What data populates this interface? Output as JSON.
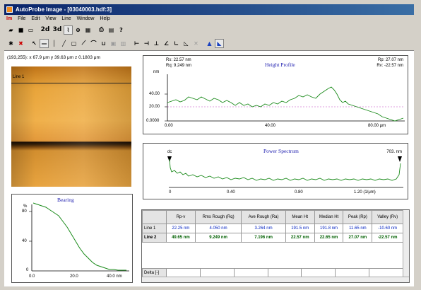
{
  "window": {
    "title": "AutoProbe Image - [03040003.hdf:3]"
  },
  "menu": {
    "logo": "Im",
    "items": [
      "File",
      "Edit",
      "View",
      "Line",
      "Window",
      "Help"
    ]
  },
  "toolbar": {
    "btn_2d": "2d",
    "btn_3d": "3d"
  },
  "status": {
    "coords": "(193,255): x 67.9 μm  y 39.63 μm  z 0.1803 μm"
  },
  "image": {
    "line_label": "Line 1"
  },
  "height_profile": {
    "title": "Height Profile",
    "stats_left_1": "Rs: 22.57 nm",
    "stats_left_2": "Rq: 9.249 nm",
    "stats_right_1": "Rp: 27.07 nm",
    "stats_right_2": "Rv: -22.57 nm",
    "y_unit": "nm",
    "y_ticks": [
      "40.00",
      "20.00",
      "0.0000"
    ],
    "x_ticks": [
      "0.00",
      "40.00",
      "80.00 μm"
    ]
  },
  "power_spectrum": {
    "title": "Power Spectrum",
    "left_label": "dc",
    "right_label": "703. nm",
    "x_ticks": [
      "0",
      "0.40",
      "0.80",
      "1.20 (1/μm)"
    ]
  },
  "bearing": {
    "title": "Bearing",
    "y_unit": "%",
    "y_ticks": [
      "80",
      "40",
      "0"
    ],
    "x_ticks": [
      "0.0",
      "20.0",
      "40.0 nm"
    ]
  },
  "table": {
    "headers": [
      "Rp-v",
      "Rms Rough (Rq)",
      "Ave Rough (Ra)",
      "Mean Ht",
      "Median Ht",
      "Peak (Rp)",
      "Valley (Rv)"
    ],
    "rows": [
      {
        "label": "Line 1",
        "values": [
          "22.25 nm",
          "4.050 nm",
          "3.264 nm",
          "191.5 nm",
          "191.8 nm",
          "11.65 nm",
          "-10.60 nm"
        ]
      },
      {
        "label": "Line 2",
        "values": [
          "49.65 nm",
          "9.249 nm",
          "7.196 nm",
          "22.57 nm",
          "22.65 nm",
          "27.07 nm",
          "-22.57 nm"
        ]
      }
    ],
    "delta_label": "Delta [-]"
  },
  "colors": {
    "titlebar": "#0a246a",
    "trace": "#1a8a1a",
    "accent_line": "#c040c0"
  }
}
